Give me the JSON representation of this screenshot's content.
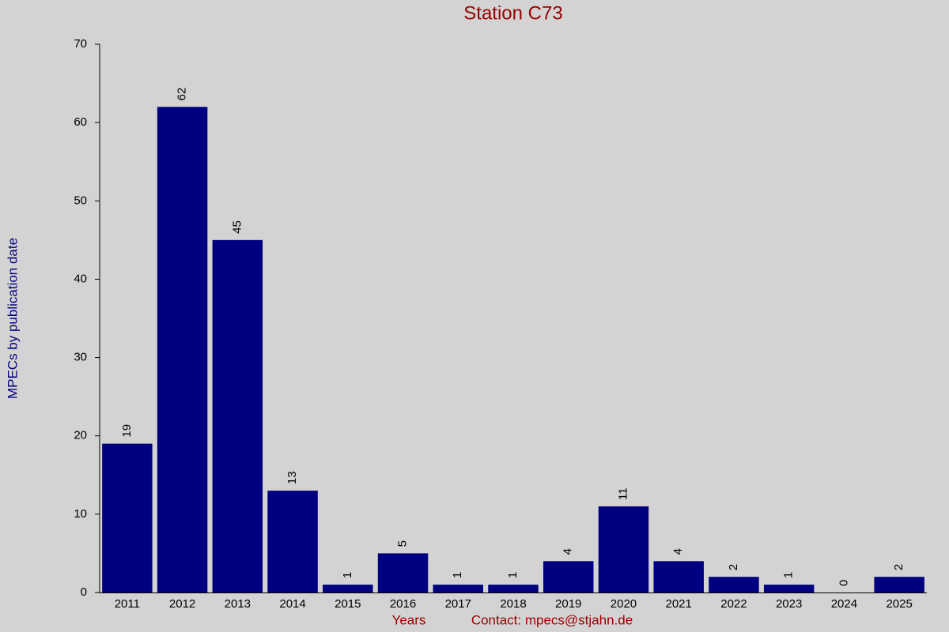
{
  "chart_data": {
    "type": "bar",
    "title": "Station C73",
    "x_label": "Years",
    "y_label": "MPECs by publication date",
    "footer": "Contact: mpecs@stjahn.de",
    "categories": [
      "2011",
      "2012",
      "2013",
      "2014",
      "2015",
      "2016",
      "2017",
      "2018",
      "2019",
      "2020",
      "2021",
      "2022",
      "2023",
      "2024",
      "2025"
    ],
    "values": [
      19,
      62,
      45,
      13,
      1,
      5,
      1,
      1,
      4,
      11,
      4,
      2,
      1,
      0,
      2
    ],
    "color": "#000080",
    "ylim": [
      0,
      70
    ],
    "yticks": [
      0,
      10,
      20,
      30,
      40,
      50,
      60,
      70
    ],
    "value_labels_shown": true
  }
}
